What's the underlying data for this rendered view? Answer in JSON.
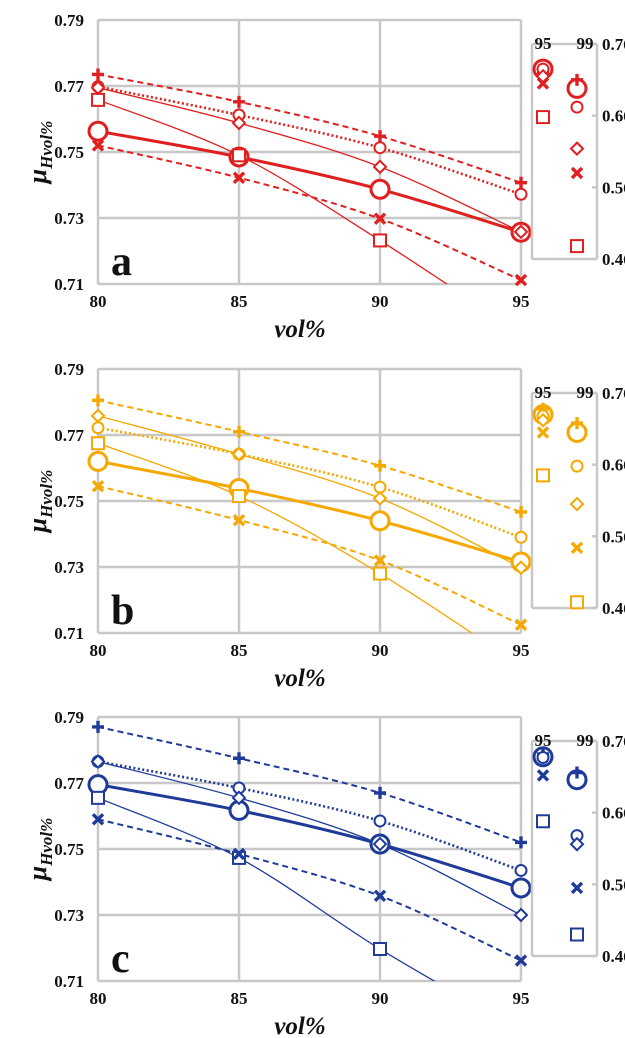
{
  "chart_data": [
    {
      "type": "line",
      "panel_label": "a",
      "color": "#e02020",
      "xlabel": "vol%",
      "ylabel": "μHvol%",
      "ylabel_main": "μ",
      "ylabel_sub": "Hvol%",
      "xlim": [
        80,
        95
      ],
      "ylim": [
        0.71,
        0.79
      ],
      "x_ticks": [
        "80",
        "85",
        "90",
        "95"
      ],
      "y_ticks": [
        "0.71",
        "0.73",
        "0.75",
        "0.77",
        "0.79"
      ],
      "grid": true,
      "x": [
        80,
        85,
        90,
        95
      ],
      "series": [
        {
          "marker": "circle-large",
          "line": "thick",
          "values": [
            0.7563,
            0.7485,
            0.7387,
            0.7257
          ]
        },
        {
          "marker": "plus",
          "line": "dashed",
          "values": [
            0.7735,
            0.7652,
            0.7548,
            0.7407
          ]
        },
        {
          "marker": "circle",
          "line": "dotted",
          "values": [
            0.7698,
            0.7612,
            0.7513,
            0.7372
          ]
        },
        {
          "marker": "diamond",
          "line": "thin",
          "values": [
            0.7695,
            0.7588,
            0.7455,
            0.7258
          ]
        },
        {
          "marker": "square",
          "line": "thin",
          "values": [
            0.7658,
            0.749,
            0.7232,
            0.695
          ]
        },
        {
          "marker": "x",
          "line": "dashed",
          "values": [
            0.752,
            0.7422,
            0.7298,
            0.7112
          ]
        }
      ],
      "side_axis": {
        "categories": [
          "95",
          "99"
        ],
        "ylim": [
          0.46,
          0.76
        ],
        "y_ticks": [
          "0.76",
          "0.66",
          "0.56",
          "0.46"
        ],
        "points": [
          {
            "cat": "95",
            "marker": "circle-large",
            "value": 0.725
          },
          {
            "cat": "95",
            "marker": "plus",
            "value": 0.72
          },
          {
            "cat": "95",
            "marker": "circle",
            "value": 0.725
          },
          {
            "cat": "95",
            "marker": "diamond",
            "value": 0.715
          },
          {
            "cat": "95",
            "marker": "x",
            "value": 0.705
          },
          {
            "cat": "95",
            "marker": "square",
            "value": 0.658
          },
          {
            "cat": "99",
            "marker": "circle-large",
            "value": 0.698
          },
          {
            "cat": "99",
            "marker": "plus",
            "value": 0.71
          },
          {
            "cat": "99",
            "marker": "circle",
            "value": 0.672
          },
          {
            "cat": "99",
            "marker": "diamond",
            "value": 0.614
          },
          {
            "cat": "99",
            "marker": "x",
            "value": 0.58
          },
          {
            "cat": "99",
            "marker": "square",
            "value": 0.478
          }
        ]
      }
    },
    {
      "type": "line",
      "panel_label": "b",
      "color": "#f5a800",
      "xlabel": "vol%",
      "ylabel": "μHvol%",
      "ylabel_main": "μ",
      "ylabel_sub": "Hvol%",
      "xlim": [
        80,
        95
      ],
      "ylim": [
        0.71,
        0.79
      ],
      "x_ticks": [
        "80",
        "85",
        "90",
        "95"
      ],
      "y_ticks": [
        "0.71",
        "0.73",
        "0.75",
        "0.77",
        "0.79"
      ],
      "grid": true,
      "x": [
        80,
        85,
        90,
        95
      ],
      "series": [
        {
          "marker": "circle-large",
          "line": "thick",
          "values": [
            0.762,
            0.7538,
            0.744,
            0.7315
          ]
        },
        {
          "marker": "plus",
          "line": "dashed",
          "values": [
            0.7805,
            0.771,
            0.7607,
            0.7467
          ]
        },
        {
          "marker": "circle",
          "line": "dotted",
          "values": [
            0.7722,
            0.7642,
            0.7542,
            0.739
          ]
        },
        {
          "marker": "diamond",
          "line": "thin",
          "values": [
            0.7758,
            0.7642,
            0.7508,
            0.7298
          ]
        },
        {
          "marker": "square",
          "line": "thin",
          "values": [
            0.7675,
            0.7515,
            0.728,
            0.7
          ]
        },
        {
          "marker": "x",
          "line": "dashed",
          "values": [
            0.7545,
            0.7442,
            0.732,
            0.7125
          ]
        }
      ],
      "side_axis": {
        "categories": [
          "95",
          "99"
        ],
        "ylim": [
          0.46,
          0.76
        ],
        "y_ticks": [
          "0.76",
          "0.66",
          "0.56",
          "0.46"
        ],
        "points": [
          {
            "cat": "95",
            "marker": "circle-large",
            "value": 0.73
          },
          {
            "cat": "95",
            "marker": "plus",
            "value": 0.738
          },
          {
            "cat": "95",
            "marker": "circle",
            "value": 0.728
          },
          {
            "cat": "95",
            "marker": "diamond",
            "value": 0.722
          },
          {
            "cat": "95",
            "marker": "x",
            "value": 0.705
          },
          {
            "cat": "95",
            "marker": "square",
            "value": 0.645
          },
          {
            "cat": "99",
            "marker": "circle-large",
            "value": 0.705
          },
          {
            "cat": "99",
            "marker": "plus",
            "value": 0.718
          },
          {
            "cat": "99",
            "marker": "circle",
            "value": 0.658
          },
          {
            "cat": "99",
            "marker": "diamond",
            "value": 0.605
          },
          {
            "cat": "99",
            "marker": "x",
            "value": 0.544
          },
          {
            "cat": "99",
            "marker": "square",
            "value": 0.468
          }
        ]
      }
    },
    {
      "type": "line",
      "panel_label": "c",
      "color": "#1f3b99",
      "xlabel": "vol%",
      "ylabel": "μHvol%",
      "ylabel_main": "μ",
      "ylabel_sub": "Hvol%",
      "xlim": [
        80,
        95
      ],
      "ylim": [
        0.71,
        0.79
      ],
      "x_ticks": [
        "80",
        "85",
        "90",
        "95"
      ],
      "y_ticks": [
        "0.71",
        "0.73",
        "0.75",
        "0.77",
        "0.79"
      ],
      "grid": true,
      "x": [
        80,
        85,
        90,
        95
      ],
      "series": [
        {
          "marker": "circle-large",
          "line": "thick",
          "values": [
            0.7695,
            0.7617,
            0.7515,
            0.7382
          ]
        },
        {
          "marker": "plus",
          "line": "dashed",
          "values": [
            0.787,
            0.7775,
            0.767,
            0.752
          ]
        },
        {
          "marker": "circle",
          "line": "dotted",
          "values": [
            0.7765,
            0.7685,
            0.7585,
            0.7435
          ]
        },
        {
          "marker": "diamond",
          "line": "thin",
          "values": [
            0.7765,
            0.7655,
            0.7515,
            0.73
          ]
        },
        {
          "marker": "square",
          "line": "thin",
          "values": [
            0.7655,
            0.7473,
            0.7197,
            0.695
          ]
        },
        {
          "marker": "x",
          "line": "dashed",
          "values": [
            0.759,
            0.7485,
            0.7358,
            0.7162
          ]
        }
      ],
      "side_axis": {
        "categories": [
          "95",
          "99"
        ],
        "ylim": [
          0.46,
          0.76
        ],
        "y_ticks": [
          "0.76",
          "0.66",
          "0.56",
          "0.46"
        ],
        "points": [
          {
            "cat": "95",
            "marker": "circle-large",
            "value": 0.738
          },
          {
            "cat": "95",
            "marker": "plus",
            "value": 0.742
          },
          {
            "cat": "95",
            "marker": "circle",
            "value": 0.737
          },
          {
            "cat": "95",
            "marker": "x",
            "value": 0.712
          },
          {
            "cat": "95",
            "marker": "square",
            "value": 0.648
          },
          {
            "cat": "99",
            "marker": "circle-large",
            "value": 0.706
          },
          {
            "cat": "99",
            "marker": "plus",
            "value": 0.716
          },
          {
            "cat": "99",
            "marker": "circle",
            "value": 0.628
          },
          {
            "cat": "99",
            "marker": "diamond",
            "value": 0.616
          },
          {
            "cat": "99",
            "marker": "x",
            "value": 0.555
          },
          {
            "cat": "99",
            "marker": "square",
            "value": 0.49
          }
        ]
      }
    }
  ]
}
